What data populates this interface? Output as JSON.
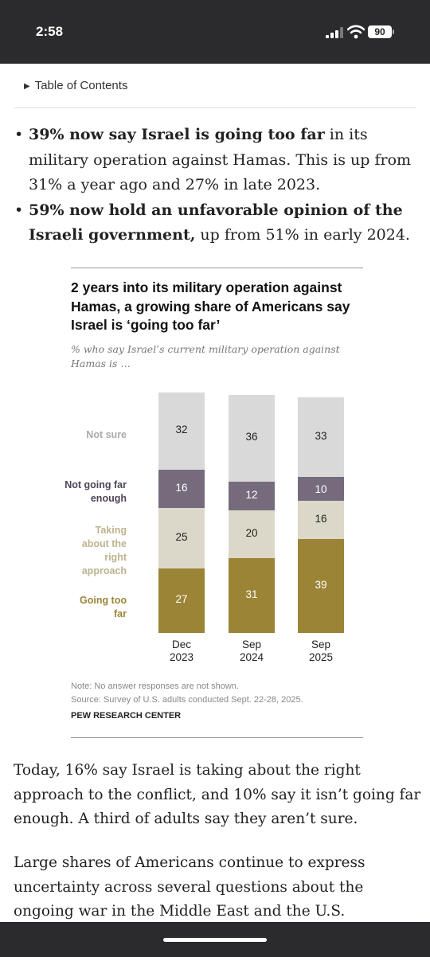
{
  "status_bar": {
    "time": "2:58",
    "battery": "90"
  },
  "toc": {
    "label": "Table of Contents"
  },
  "bullets": [
    {
      "bold": "39% now say Israel is going too far",
      "rest": " in its military operation against Hamas. This is up from 31% a year ago and 27% in late 2023."
    },
    {
      "bold": "59% now hold an unfavorable opinion of the Israeli government,",
      "rest": " up from 51% in early 2024."
    }
  ],
  "chart": {
    "title": "2 years into its military operation against Hamas, a growing share of Americans say Israel is ‘going too far’",
    "subtitle": "% who say Israel’s current military operation against Hamas is …",
    "legend": {
      "not_sure": "Not sure",
      "not_far_enough": "Not going far enough",
      "right_approach": "Taking about the right approach",
      "too_far": "Going too far"
    },
    "note": "Note: No answer responses are not shown.",
    "source": "Source: Survey of U.S. adults conducted Sept. 22-28, 2025.",
    "brand": "PEW RESEARCH CENTER"
  },
  "chart_data": {
    "type": "bar",
    "stacked": true,
    "categories": [
      [
        "Dec",
        "2023"
      ],
      [
        "Sep",
        "2024"
      ],
      [
        "Sep",
        "2025"
      ]
    ],
    "series": [
      {
        "name": "Going too far",
        "values": [
          27,
          31,
          39
        ],
        "color": "#9c8437"
      },
      {
        "name": "Taking about the right approach",
        "values": [
          25,
          20,
          16
        ],
        "color": "#dcd8c9"
      },
      {
        "name": "Not going far enough",
        "values": [
          16,
          12,
          10
        ],
        "color": "#766b7d"
      },
      {
        "name": "Not sure",
        "values": [
          32,
          36,
          33
        ],
        "color": "#d9d9d9"
      }
    ]
  },
  "paragraphs": [
    "Today, 16% say Israel is taking about the right approach to the conflict, and 10% say it isn’t going far enough. A third of adults say they aren’t sure.",
    "Large shares of Americans continue to express uncertainty across several questions about the ongoing war in the Middle East and the U.S. government’s"
  ]
}
